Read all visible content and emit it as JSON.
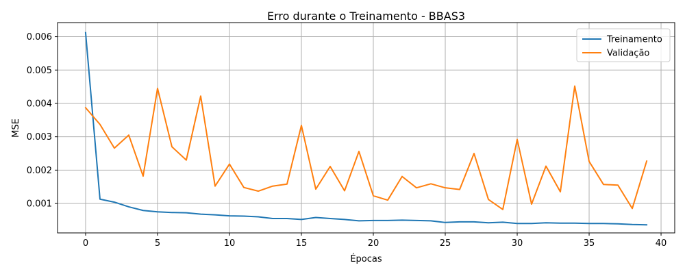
{
  "chart_data": {
    "type": "line",
    "title": "Erro durante o Treinamento - BBAS3",
    "xlabel": "Épocas",
    "ylabel": "MSE",
    "xlim": [
      -1.95,
      40.95
    ],
    "ylim": [
      0.000118,
      0.006422
    ],
    "xticks": [
      0,
      5,
      10,
      15,
      20,
      25,
      30,
      35,
      40
    ],
    "xtick_labels": [
      "0",
      "5",
      "10",
      "15",
      "20",
      "25",
      "30",
      "35",
      "40"
    ],
    "yticks": [
      0.001,
      0.002,
      0.003,
      0.004,
      0.005,
      0.006
    ],
    "ytick_labels": [
      "0.001",
      "0.002",
      "0.003",
      "0.004",
      "0.005",
      "0.006"
    ],
    "grid": true,
    "legend_position": "top-right",
    "x": [
      0,
      1,
      2,
      3,
      4,
      5,
      6,
      7,
      8,
      9,
      10,
      11,
      12,
      13,
      14,
      15,
      16,
      17,
      18,
      19,
      20,
      21,
      22,
      23,
      24,
      25,
      26,
      27,
      28,
      29,
      30,
      31,
      32,
      33,
      34,
      35,
      36,
      37,
      38,
      39
    ],
    "series": [
      {
        "name": "Treinamento",
        "color": "#1f77b4",
        "values": [
          0.00612,
          0.00113,
          0.00104,
          0.0009,
          0.00079,
          0.00075,
          0.00073,
          0.00072,
          0.00068,
          0.00066,
          0.00063,
          0.00062,
          0.0006,
          0.00055,
          0.00055,
          0.00052,
          0.00058,
          0.00055,
          0.00052,
          0.00048,
          0.00049,
          0.00049,
          0.0005,
          0.00049,
          0.00048,
          0.00043,
          0.00045,
          0.00045,
          0.00042,
          0.00044,
          0.0004,
          0.0004,
          0.00042,
          0.00041,
          0.00041,
          0.0004,
          0.0004,
          0.00039,
          0.00037,
          0.00036
        ]
      },
      {
        "name": "Validação",
        "color": "#ff7f0e",
        "values": [
          0.00387,
          0.00337,
          0.00266,
          0.00305,
          0.00182,
          0.00445,
          0.0027,
          0.0023,
          0.00422,
          0.00152,
          0.00218,
          0.00148,
          0.00137,
          0.00152,
          0.00158,
          0.00334,
          0.00143,
          0.00211,
          0.00138,
          0.00256,
          0.00123,
          0.0011,
          0.00181,
          0.00147,
          0.00159,
          0.00147,
          0.00142,
          0.0025,
          0.00112,
          0.00082,
          0.00292,
          0.00098,
          0.00212,
          0.00135,
          0.00452,
          0.00226,
          0.00157,
          0.00155,
          0.00085,
          0.00227
        ]
      }
    ]
  }
}
